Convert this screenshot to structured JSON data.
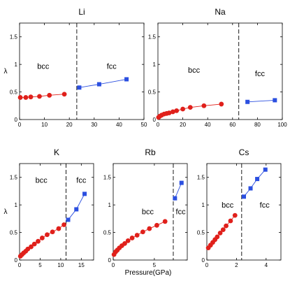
{
  "chart_data": [
    {
      "type": "line",
      "title": "Li",
      "ylabel": "λ",
      "xlabel": "",
      "xlim": [
        0,
        50
      ],
      "ylim": [
        0,
        1.75
      ],
      "xticks": [
        0,
        10,
        20,
        30,
        40,
        50
      ],
      "yticks": [
        0,
        0.5,
        1,
        1.5
      ],
      "ytick_labels": [
        "0",
        "0.5",
        "1",
        "1.5"
      ],
      "transition": 23,
      "phase_labels": [
        {
          "text": "bcc",
          "x": 9.5,
          "y": 0.97
        },
        {
          "text": "fcc",
          "x": 37,
          "y": 0.97
        }
      ],
      "series": [
        {
          "phase": "bcc",
          "color": "#e0201b",
          "marker": "circle",
          "x": [
            0.3,
            2.5,
            4.5,
            8,
            12,
            18
          ],
          "y": [
            0.4,
            0.4,
            0.41,
            0.42,
            0.44,
            0.46
          ]
        },
        {
          "phase": "fcc",
          "color": "#2b4fe0",
          "marker": "square",
          "x": [
            24,
            32,
            43
          ],
          "y": [
            0.58,
            0.64,
            0.73
          ]
        }
      ]
    },
    {
      "type": "line",
      "title": "Na",
      "ylabel": "",
      "xlabel": "",
      "xlim": [
        0,
        100
      ],
      "ylim": [
        0,
        1.75
      ],
      "xticks": [
        0,
        20,
        40,
        60,
        80,
        100
      ],
      "yticks": [
        0,
        0.5,
        1,
        1.5
      ],
      "ytick_labels": [
        "0",
        "0.5",
        "1",
        "1.5"
      ],
      "transition": 65,
      "phase_labels": [
        {
          "text": "bcc",
          "x": 29,
          "y": 0.9
        },
        {
          "text": "fcc",
          "x": 82,
          "y": 0.84
        }
      ],
      "series": [
        {
          "phase": "bcc",
          "color": "#e0201b",
          "marker": "circle",
          "x": [
            0.5,
            1.5,
            3,
            5,
            7,
            9,
            12,
            15,
            20,
            26,
            37,
            51
          ],
          "y": [
            0.04,
            0.06,
            0.08,
            0.1,
            0.11,
            0.12,
            0.14,
            0.16,
            0.19,
            0.22,
            0.25,
            0.28
          ]
        },
        {
          "phase": "fcc",
          "color": "#2b4fe0",
          "marker": "square",
          "x": [
            72,
            94
          ],
          "y": [
            0.32,
            0.35
          ]
        }
      ]
    },
    {
      "type": "line",
      "title": "K",
      "ylabel": "λ",
      "xlabel": "",
      "xlim": [
        0,
        18
      ],
      "ylim": [
        0,
        1.75
      ],
      "xticks": [
        0,
        5,
        10,
        15
      ],
      "yticks": [
        0,
        0.5,
        1,
        1.5
      ],
      "ytick_labels": [
        "0",
        "0.5",
        "1",
        "1.5"
      ],
      "transition": 11.3,
      "phase_labels": [
        {
          "text": "bcc",
          "x": 5.3,
          "y": 1.45
        },
        {
          "text": "fcc",
          "x": 15,
          "y": 1.45
        }
      ],
      "series": [
        {
          "phase": "bcc",
          "color": "#e0201b",
          "marker": "circle",
          "x": [
            0.2,
            0.6,
            1,
            1.5,
            2,
            2.8,
            3.6,
            4.5,
            5.5,
            6.7,
            8,
            9.5,
            10.8
          ],
          "y": [
            0.07,
            0.1,
            0.13,
            0.16,
            0.2,
            0.24,
            0.29,
            0.34,
            0.4,
            0.46,
            0.51,
            0.57,
            0.64
          ]
        },
        {
          "phase": "fcc",
          "color": "#2b4fe0",
          "marker": "square",
          "x": [
            11.8,
            13.8,
            15.8
          ],
          "y": [
            0.73,
            0.92,
            1.2
          ]
        }
      ]
    },
    {
      "type": "line",
      "title": "Rb",
      "ylabel": "",
      "xlabel": "Pressure(GPa)",
      "xlim": [
        0,
        9
      ],
      "ylim": [
        0,
        1.75
      ],
      "xticks": [
        0,
        5
      ],
      "yticks": [
        0,
        0.5,
        1,
        1.5
      ],
      "ytick_labels": [
        "0",
        "0.5",
        "1",
        "1.5"
      ],
      "transition": 7.3,
      "phase_labels": [
        {
          "text": "bcc",
          "x": 4.2,
          "y": 0.88
        },
        {
          "text": "fcc",
          "x": 8.2,
          "y": 0.88
        }
      ],
      "series": [
        {
          "phase": "bcc",
          "color": "#e0201b",
          "marker": "circle",
          "x": [
            0.1,
            0.3,
            0.5,
            0.75,
            1.05,
            1.4,
            1.8,
            2.3,
            2.9,
            3.6,
            4.4,
            5.3,
            6.3
          ],
          "y": [
            0.1,
            0.15,
            0.18,
            0.22,
            0.26,
            0.3,
            0.35,
            0.4,
            0.45,
            0.51,
            0.57,
            0.63,
            0.7
          ]
        },
        {
          "phase": "fcc",
          "color": "#2b4fe0",
          "marker": "square",
          "x": [
            7.5,
            8.3
          ],
          "y": [
            1.12,
            1.4
          ]
        }
      ]
    },
    {
      "type": "line",
      "title": "Cs",
      "ylabel": "",
      "xlabel": "",
      "xlim": [
        0,
        5
      ],
      "ylim": [
        0,
        1.75
      ],
      "xticks": [
        0,
        2,
        4
      ],
      "yticks": [
        0,
        0.5,
        1,
        1.5
      ],
      "ytick_labels": [
        "0",
        "0.5",
        "1",
        "1.5"
      ],
      "transition": 2.35,
      "phase_labels": [
        {
          "text": "bcc",
          "x": 1.4,
          "y": 1.0
        },
        {
          "text": "fcc",
          "x": 3.9,
          "y": 1.0
        }
      ],
      "series": [
        {
          "phase": "bcc",
          "color": "#e0201b",
          "marker": "circle",
          "x": [
            0.1,
            0.25,
            0.4,
            0.55,
            0.7,
            0.9,
            1.1,
            1.3,
            1.6,
            1.9
          ],
          "y": [
            0.22,
            0.27,
            0.32,
            0.37,
            0.42,
            0.49,
            0.55,
            0.62,
            0.71,
            0.81
          ]
        },
        {
          "phase": "fcc",
          "color": "#2b4fe0",
          "marker": "square",
          "x": [
            2.5,
            2.95,
            3.4,
            3.95
          ],
          "y": [
            1.15,
            1.3,
            1.47,
            1.64
          ]
        }
      ]
    }
  ]
}
